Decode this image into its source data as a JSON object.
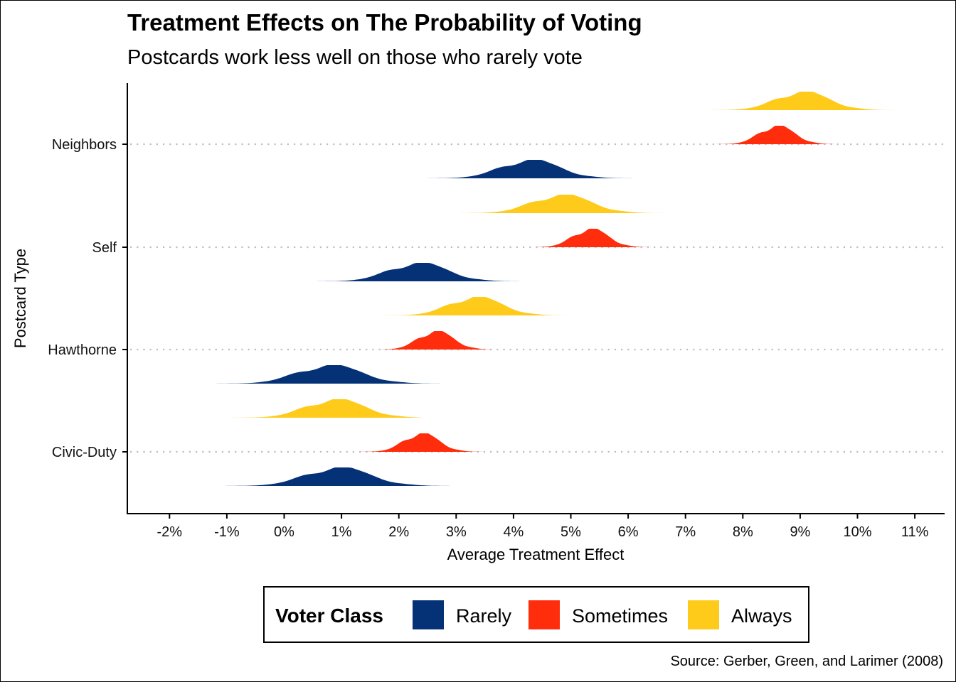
{
  "chart_data": {
    "type": "ridgeline-density",
    "title": "Treatment Effects on The Probability of Voting",
    "subtitle": "Postcards work less well on those who rarely vote",
    "xlabel": "Average Treatment Effect",
    "ylabel": "Postcard Type",
    "caption": "Source: Gerber, Green, and Larimer (2008)",
    "xlim": [
      -2.7,
      11.5
    ],
    "x_ticks": [
      -2,
      -1,
      0,
      1,
      2,
      3,
      4,
      5,
      6,
      7,
      8,
      9,
      10,
      11
    ],
    "x_tick_labels": [
      "-2%",
      "-1%",
      "0%",
      "1%",
      "2%",
      "3%",
      "4%",
      "5%",
      "6%",
      "7%",
      "8%",
      "9%",
      "10%",
      "11%"
    ],
    "categories": [
      "Civic-Duty",
      "Hawthorne",
      "Self",
      "Neighbors"
    ],
    "legend": {
      "title": "Voter Class",
      "position": "bottom",
      "entries": [
        {
          "name": "Rarely",
          "color": "#053176"
        },
        {
          "name": "Sometimes",
          "color": "#FF2D0C"
        },
        {
          "name": "Always",
          "color": "#FECB1A"
        }
      ]
    },
    "series": [
      {
        "name": "Rarely",
        "color": "#053176",
        "values": [
          {
            "category": "Civic-Duty",
            "mean": 0.95,
            "sd": 0.55,
            "min": -2.0,
            "max": 3.5
          },
          {
            "category": "Hawthorne",
            "mean": 0.8,
            "sd": 0.55,
            "min": -2.1,
            "max": 3.6
          },
          {
            "category": "Self",
            "mean": 2.35,
            "sd": 0.5,
            "min": -0.1,
            "max": 4.5
          },
          {
            "category": "Neighbors",
            "mean": 4.3,
            "sd": 0.5,
            "min": 2.0,
            "max": 6.9
          }
        ]
      },
      {
        "name": "Sometimes",
        "color": "#FF2D0C",
        "values": [
          {
            "category": "Civic-Duty",
            "mean": 2.4,
            "sd": 0.3,
            "min": 1.3,
            "max": 3.5
          },
          {
            "category": "Hawthorne",
            "mean": 2.65,
            "sd": 0.3,
            "min": 1.7,
            "max": 3.6
          },
          {
            "category": "Self",
            "mean": 5.35,
            "sd": 0.3,
            "min": 4.4,
            "max": 6.4
          },
          {
            "category": "Neighbors",
            "mean": 8.6,
            "sd": 0.3,
            "min": 7.5,
            "max": 9.6
          }
        ]
      },
      {
        "name": "Always",
        "color": "#FECB1A",
        "values": [
          {
            "category": "Civic-Duty",
            "mean": 0.9,
            "sd": 0.5,
            "min": -1.0,
            "max": 2.4
          },
          {
            "category": "Hawthorne",
            "mean": 3.35,
            "sd": 0.45,
            "min": 1.6,
            "max": 5.0
          },
          {
            "category": "Self",
            "mean": 4.85,
            "sd": 0.5,
            "min": 3.0,
            "max": 6.7
          },
          {
            "category": "Neighbors",
            "mean": 9.05,
            "sd": 0.45,
            "min": 7.4,
            "max": 10.9
          }
        ]
      }
    ]
  }
}
